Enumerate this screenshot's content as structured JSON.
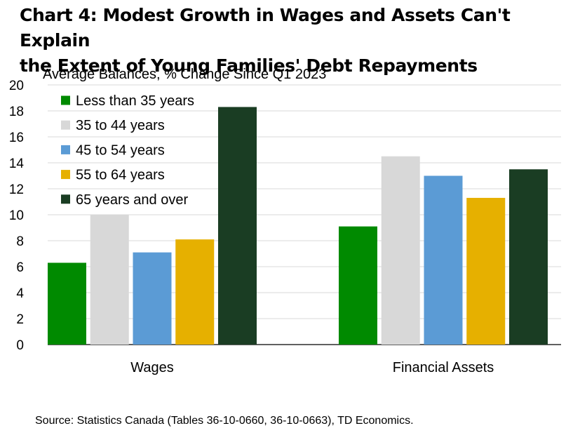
{
  "title_line1": "Chart 4: Modest Growth in Wages and Assets Can't Explain",
  "title_line2": "the Extent of Young Families' Debt Repayments",
  "subtitle": "Average Balances, % Change Since Q1 2023",
  "source": "Source: Statistics Canada (Tables 36-10-0660, 36-10-0663), TD Economics.",
  "chart_data": {
    "type": "bar",
    "title": "Chart 4: Modest Growth in Wages and Assets Can't Explain the Extent of Young Families' Debt Repayments",
    "ylabel": "Average Balances, % Change Since Q1 2023",
    "xlabel": "",
    "categories": [
      "Wages",
      "Financial Assets"
    ],
    "ylim": [
      0,
      20
    ],
    "yticks": [
      0,
      2,
      4,
      6,
      8,
      10,
      12,
      14,
      16,
      18,
      20
    ],
    "grid": true,
    "legend_position": "top-left",
    "series": [
      {
        "name": "Less than 35 years",
        "color": "#008a00",
        "values": [
          6.3,
          9.1
        ]
      },
      {
        "name": "35 to 44 years",
        "color": "#d8d8d8",
        "values": [
          10.0,
          14.5
        ]
      },
      {
        "name": "45 to 54 years",
        "color": "#5b9bd5",
        "values": [
          7.1,
          13.0
        ]
      },
      {
        "name": "55 to 64 years",
        "color": "#e6b000",
        "values": [
          8.1,
          11.3
        ]
      },
      {
        "name": "65 years and over",
        "color": "#1a3d23",
        "values": [
          18.3,
          13.5
        ]
      }
    ]
  }
}
